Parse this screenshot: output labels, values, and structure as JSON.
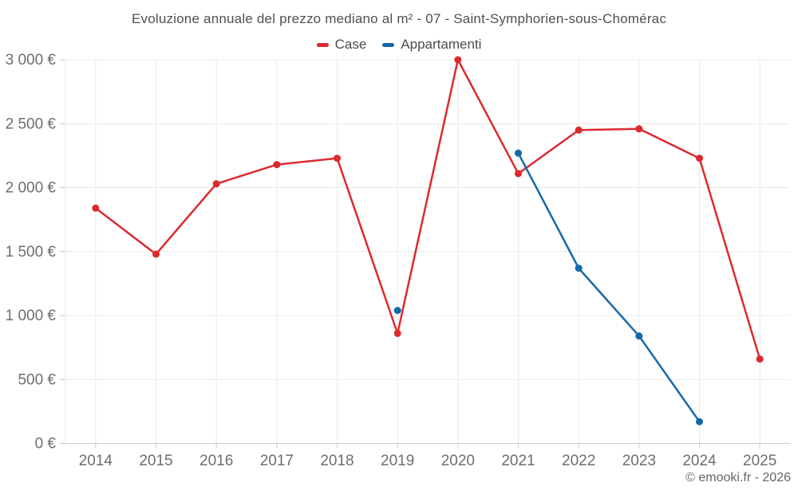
{
  "title": "Evoluzione annuale del prezzo mediano al m² - 07 - Saint-Symphorien-sous-Chomérac",
  "footer": "© emooki.fr - 2026",
  "colors": {
    "case": "#dc2a2e",
    "appartamenti": "#1469aa",
    "grid": "#e9e9e9",
    "axis": "#cccccc",
    "axis_text": "#6e6e6e",
    "title_text": "#4f4f4f"
  },
  "chart_data": {
    "type": "line",
    "title": "Evoluzione annuale del prezzo mediano al m² - 07 - Saint-Symphorien-sous-Chomérac",
    "x": [
      "2014",
      "2015",
      "2016",
      "2017",
      "2018",
      "2019",
      "2020",
      "2021",
      "2022",
      "2023",
      "2024",
      "2025"
    ],
    "series": [
      {
        "name": "Case",
        "color": "#dc2a2e",
        "values": [
          1840,
          1480,
          2030,
          2180,
          2230,
          860,
          3000,
          2110,
          2450,
          2460,
          2230,
          660
        ]
      },
      {
        "name": "Appartamenti",
        "color": "#1469aa",
        "values": [
          null,
          null,
          null,
          null,
          null,
          1040,
          null,
          2270,
          1370,
          840,
          170,
          null
        ]
      }
    ],
    "xlabel": "",
    "ylabel": "",
    "ylim": [
      0,
      3000
    ],
    "y_tick_step": 500,
    "y_tick_labels": [
      "0 €",
      "500 €",
      "1 000 €",
      "1 500 €",
      "2 000 €",
      "2 500 €",
      "3 000 €"
    ],
    "y_unit": "€",
    "grid": "both",
    "legend_position": "top"
  }
}
